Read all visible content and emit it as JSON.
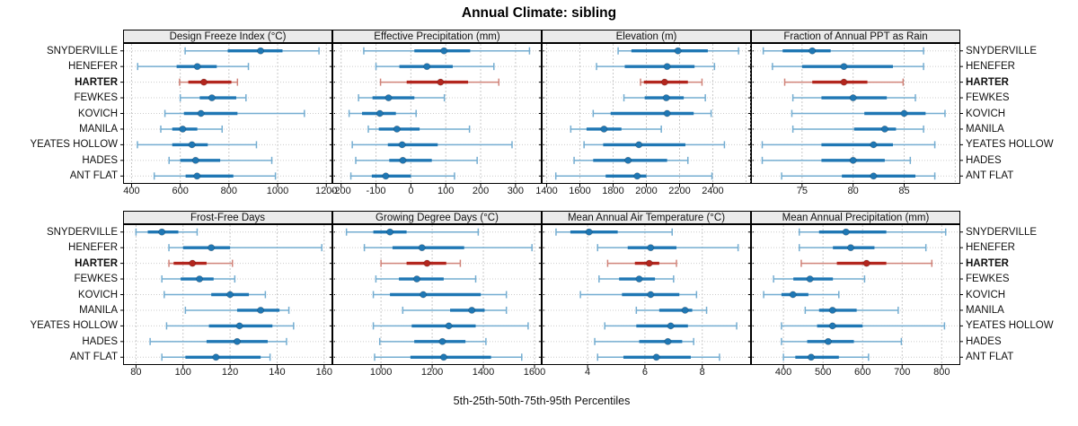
{
  "title": "Annual Climate: sibling",
  "caption": "5th-25th-50th-75th-95th Percentiles",
  "chart_data": {
    "type": "scatter",
    "subtype": "multi-panel-percentile-dotplot",
    "title": "Annual Climate: sibling",
    "caption": "5th-25th-50th-75th-95th Percentiles",
    "percentile_levels": [
      5,
      25,
      50,
      75,
      95
    ],
    "stations": [
      "SNYDERVILLE",
      "HENEFER",
      "HARTER",
      "FEWKES",
      "KOVICH",
      "MANILA",
      "YEATES HOLLOW",
      "HADES",
      "ANT FLAT"
    ],
    "highlighted_station": "HARTER",
    "legend_position": "none",
    "grid": "on",
    "colors": {
      "normal_median": "#1f77b4",
      "normal_box": "#1f77b4",
      "normal_whisker": "#74add1",
      "highlight_median": "#b3261e",
      "highlight_box": "#b3261e",
      "highlight_whisker": "#d08379",
      "strip_background": "#ebebeb",
      "gridline": "#c9c9c9",
      "panel_border": "#000000"
    },
    "panels": [
      {
        "label": "Design Freeze Index (°C)",
        "row": 0,
        "col": 0,
        "domain": [
          365,
          1225
        ],
        "ticks": [
          400,
          600,
          800,
          1000,
          1200
        ],
        "grid_extra": [],
        "values": [
          [
            620,
            795,
            930,
            1020,
            1170
          ],
          [
            425,
            585,
            670,
            750,
            880
          ],
          [
            597,
            633,
            697,
            810,
            835
          ],
          [
            600,
            680,
            730,
            830,
            870
          ],
          [
            537,
            615,
            685,
            835,
            1110
          ],
          [
            520,
            567,
            610,
            670,
            772
          ],
          [
            424,
            567,
            648,
            713,
            913
          ],
          [
            554,
            600,
            663,
            764,
            976
          ],
          [
            493,
            622,
            669,
            818,
            991
          ]
        ]
      },
      {
        "label": "Effective Precipitation (mm)",
        "row": 0,
        "col": 1,
        "domain": [
          -225,
          375
        ],
        "ticks": [
          -200,
          -100,
          0,
          100,
          200,
          300
        ],
        "grid_extra": [],
        "values": [
          [
            -135,
            10,
            95,
            170,
            340
          ],
          [
            -100,
            -33,
            46,
            120,
            238
          ],
          [
            -87,
            -12,
            85,
            164,
            252
          ],
          [
            -150,
            -110,
            -64,
            10,
            96
          ],
          [
            -177,
            -140,
            -89,
            -43,
            15
          ],
          [
            -122,
            -92,
            -40,
            25,
            168
          ],
          [
            -168,
            -66,
            -25,
            77,
            290
          ],
          [
            -158,
            -62,
            -23,
            60,
            190
          ],
          [
            -172,
            -112,
            -72,
            0,
            125
          ]
        ]
      },
      {
        "label": "Elevation (m)",
        "row": 0,
        "col": 2,
        "domain": [
          1370,
          2630
        ],
        "ticks": [
          1400,
          1600,
          1800,
          2000,
          2200,
          2400
        ],
        "grid_extra": [
          2600
        ],
        "values": [
          [
            1830,
            1910,
            2190,
            2370,
            2555
          ],
          [
            1700,
            1870,
            2125,
            2290,
            2410
          ],
          [
            1965,
            1985,
            2110,
            2250,
            2335
          ],
          [
            1865,
            1990,
            2120,
            2225,
            2355
          ],
          [
            1680,
            1785,
            2125,
            2285,
            2390
          ],
          [
            1545,
            1640,
            1745,
            1850,
            2090
          ],
          [
            1625,
            1740,
            1955,
            2235,
            2470
          ],
          [
            1565,
            1680,
            1890,
            2125,
            2250
          ],
          [
            1455,
            1755,
            1945,
            2000,
            2395
          ]
        ]
      },
      {
        "label": "Fraction of Annual PPT as Rain",
        "row": 0,
        "col": 3,
        "domain": [
          70,
          90.5
        ],
        "ticks": [
          75,
          80,
          85
        ],
        "grid_extra": [
          70,
          90
        ],
        "values": [
          [
            71.2,
            73.1,
            76.0,
            77.8,
            86.9
          ],
          [
            72.1,
            75.0,
            79.1,
            83.9,
            86.9
          ],
          [
            73.3,
            76.0,
            79.1,
            81.4,
            84.9
          ],
          [
            74.1,
            76.9,
            80.0,
            83.3,
            86.1
          ],
          [
            74.0,
            81.1,
            85.0,
            87.1,
            89.0
          ],
          [
            74.1,
            80.1,
            83.1,
            84.2,
            86.9
          ],
          [
            71.1,
            76.9,
            82.0,
            83.9,
            88.0
          ],
          [
            71.1,
            76.9,
            80.0,
            83.1,
            85.6
          ],
          [
            73.0,
            78.9,
            82.0,
            86.1,
            88.0
          ]
        ]
      },
      {
        "label": "Frost-Free Days",
        "row": 1,
        "col": 0,
        "domain": [
          74.5,
          163.5
        ],
        "ticks": [
          80,
          100,
          120,
          140,
          160
        ],
        "grid_extra": [],
        "values": [
          [
            80,
            85,
            91,
            98,
            106
          ],
          [
            94,
            100,
            112,
            120,
            159
          ],
          [
            94,
            96,
            104,
            110,
            121
          ],
          [
            91,
            99,
            107,
            113,
            122
          ],
          [
            92,
            112,
            120,
            128,
            135
          ],
          [
            101,
            123,
            133,
            141,
            145
          ],
          [
            93,
            111,
            124,
            138,
            147
          ],
          [
            86,
            110,
            123,
            136,
            144
          ],
          [
            91,
            101,
            114,
            133,
            137
          ]
        ]
      },
      {
        "label": "Growing Degree Days (°C)",
        "row": 1,
        "col": 1,
        "domain": [
          810,
          1628
        ],
        "ticks": [
          1000,
          1200,
          1400,
          1600
        ],
        "grid_extra": [],
        "values": [
          [
            865,
            970,
            1035,
            1100,
            1380
          ],
          [
            935,
            1045,
            1160,
            1325,
            1590
          ],
          [
            1000,
            1100,
            1180,
            1255,
            1310
          ],
          [
            980,
            1070,
            1140,
            1245,
            1370
          ],
          [
            970,
            1035,
            1165,
            1390,
            1490
          ],
          [
            1085,
            1270,
            1355,
            1405,
            1490
          ],
          [
            970,
            1120,
            1265,
            1370,
            1575
          ],
          [
            995,
            1130,
            1240,
            1330,
            1410
          ],
          [
            975,
            1115,
            1245,
            1430,
            1550
          ]
        ]
      },
      {
        "label": "Mean Annual Air Temperature (°C)",
        "row": 1,
        "col": 2,
        "domain": [
          2.4,
          9.7
        ],
        "ticks": [
          4,
          6,
          8
        ],
        "grid_extra": [],
        "values": [
          [
            2.9,
            3.4,
            4.05,
            5.05,
            6.95
          ],
          [
            4.35,
            5.4,
            6.2,
            7.1,
            9.25
          ],
          [
            4.7,
            5.65,
            6.15,
            6.5,
            7.1
          ],
          [
            4.4,
            5.1,
            5.8,
            6.35,
            7.0
          ],
          [
            3.75,
            5.2,
            6.2,
            7.2,
            7.8
          ],
          [
            5.7,
            6.5,
            7.4,
            7.65,
            8.15
          ],
          [
            4.6,
            5.7,
            6.9,
            7.5,
            9.2
          ],
          [
            4.25,
            5.8,
            6.8,
            7.3,
            7.7
          ],
          [
            4.35,
            5.25,
            6.4,
            7.6,
            8.6
          ]
        ]
      },
      {
        "label": "Mean Annual Precipitation (mm)",
        "row": 1,
        "col": 3,
        "domain": [
          318,
          847
        ],
        "ticks": [
          400,
          500,
          600,
          700,
          800
        ],
        "grid_extra": [],
        "values": [
          [
            440,
            490,
            558,
            660,
            810
          ],
          [
            440,
            525,
            570,
            630,
            760
          ],
          [
            445,
            535,
            610,
            660,
            775
          ],
          [
            375,
            425,
            467,
            525,
            605
          ],
          [
            350,
            395,
            424,
            463,
            540
          ],
          [
            455,
            490,
            524,
            585,
            690
          ],
          [
            395,
            485,
            524,
            600,
            807
          ],
          [
            395,
            460,
            513,
            578,
            698
          ],
          [
            400,
            430,
            470,
            540,
            615
          ]
        ]
      }
    ]
  }
}
